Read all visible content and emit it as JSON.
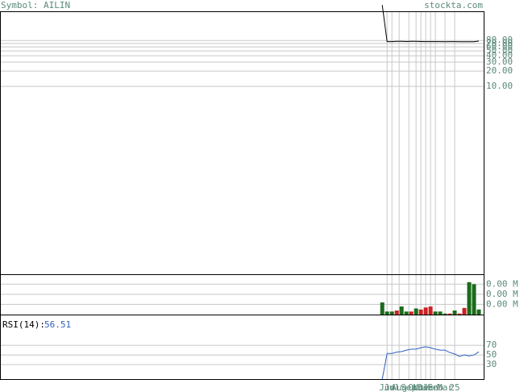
{
  "chart_data": {
    "type": "stock",
    "symbol_label": "Symbol: AILIN",
    "site": "stockta.com",
    "xlim": [
      -79,
      21
    ],
    "xticks": [
      {
        "value": 1,
        "label": "Jun"
      },
      {
        "value": 2,
        "label": "Jul"
      },
      {
        "value": 3.5,
        "label": "Aug"
      },
      {
        "value": 5.5,
        "label": "Sep"
      },
      {
        "value": 7,
        "label": "Oct"
      },
      {
        "value": 8,
        "label": "Nov"
      },
      {
        "value": 9,
        "label": "Dec"
      },
      {
        "value": 10,
        "label": "Jan"
      },
      {
        "value": 11,
        "label": "Feb"
      },
      {
        "value": 13,
        "label": "Mar"
      },
      {
        "value": 15,
        "label": "25"
      }
    ],
    "x": [
      0,
      1,
      2,
      3,
      4,
      5,
      6,
      7,
      8,
      9,
      10,
      11,
      12,
      13,
      14,
      15,
      16,
      17,
      18,
      19,
      20
    ],
    "price": {
      "log": true,
      "ylim": [
        0.002,
        290
      ],
      "yticks": [
        {
          "value": 80,
          "label": "80.00"
        },
        {
          "value": 70,
          "label": "70.00"
        },
        {
          "value": 60,
          "label": "60.00"
        },
        {
          "value": 50,
          "label": "50.00"
        },
        {
          "value": 40,
          "label": "40.00"
        },
        {
          "value": 30,
          "label": "30.00"
        },
        {
          "value": 20,
          "label": "20.00"
        },
        {
          "value": 10,
          "label": "10.00"
        }
      ],
      "color": "#000000",
      "values": [
        400,
        76,
        76,
        77,
        77,
        76.5,
        77,
        77,
        76.5,
        76,
        76,
        76,
        76,
        75.5,
        76,
        76,
        75.5,
        75.5,
        75.5,
        75.5,
        78
      ]
    },
    "volume": {
      "ylim": [
        0,
        3900
      ],
      "yticks": [
        {
          "value": 3000,
          "label": "0.00 M"
        },
        {
          "value": 2000,
          "label": "0.00 M"
        },
        {
          "value": 1000,
          "label": "0.00 M"
        }
      ],
      "up_color": "#1a6b1a",
      "down_color": "#cc2222",
      "values": [
        1200,
        300,
        300,
        400,
        800,
        300,
        300,
        600,
        500,
        700,
        800,
        300,
        300,
        100,
        100,
        400,
        100,
        650,
        3200,
        3000,
        500
      ],
      "direction": [
        "up",
        "up",
        "up",
        "down",
        "up",
        "up",
        "down",
        "up",
        "down",
        "down",
        "down",
        "up",
        "up",
        "up",
        "down",
        "up",
        "down",
        "down",
        "up",
        "up",
        "up"
      ]
    },
    "rsi": {
      "label": "RSI(14):",
      "ylim": [
        0,
        132
      ],
      "yticks": [
        70,
        50,
        30
      ],
      "color": "#3060c0",
      "values": [
        0,
        53,
        53,
        56,
        57,
        60,
        62,
        62,
        65,
        67,
        65,
        62,
        60,
        60,
        55,
        52,
        47,
        50,
        48,
        50,
        56.51
      ]
    }
  }
}
